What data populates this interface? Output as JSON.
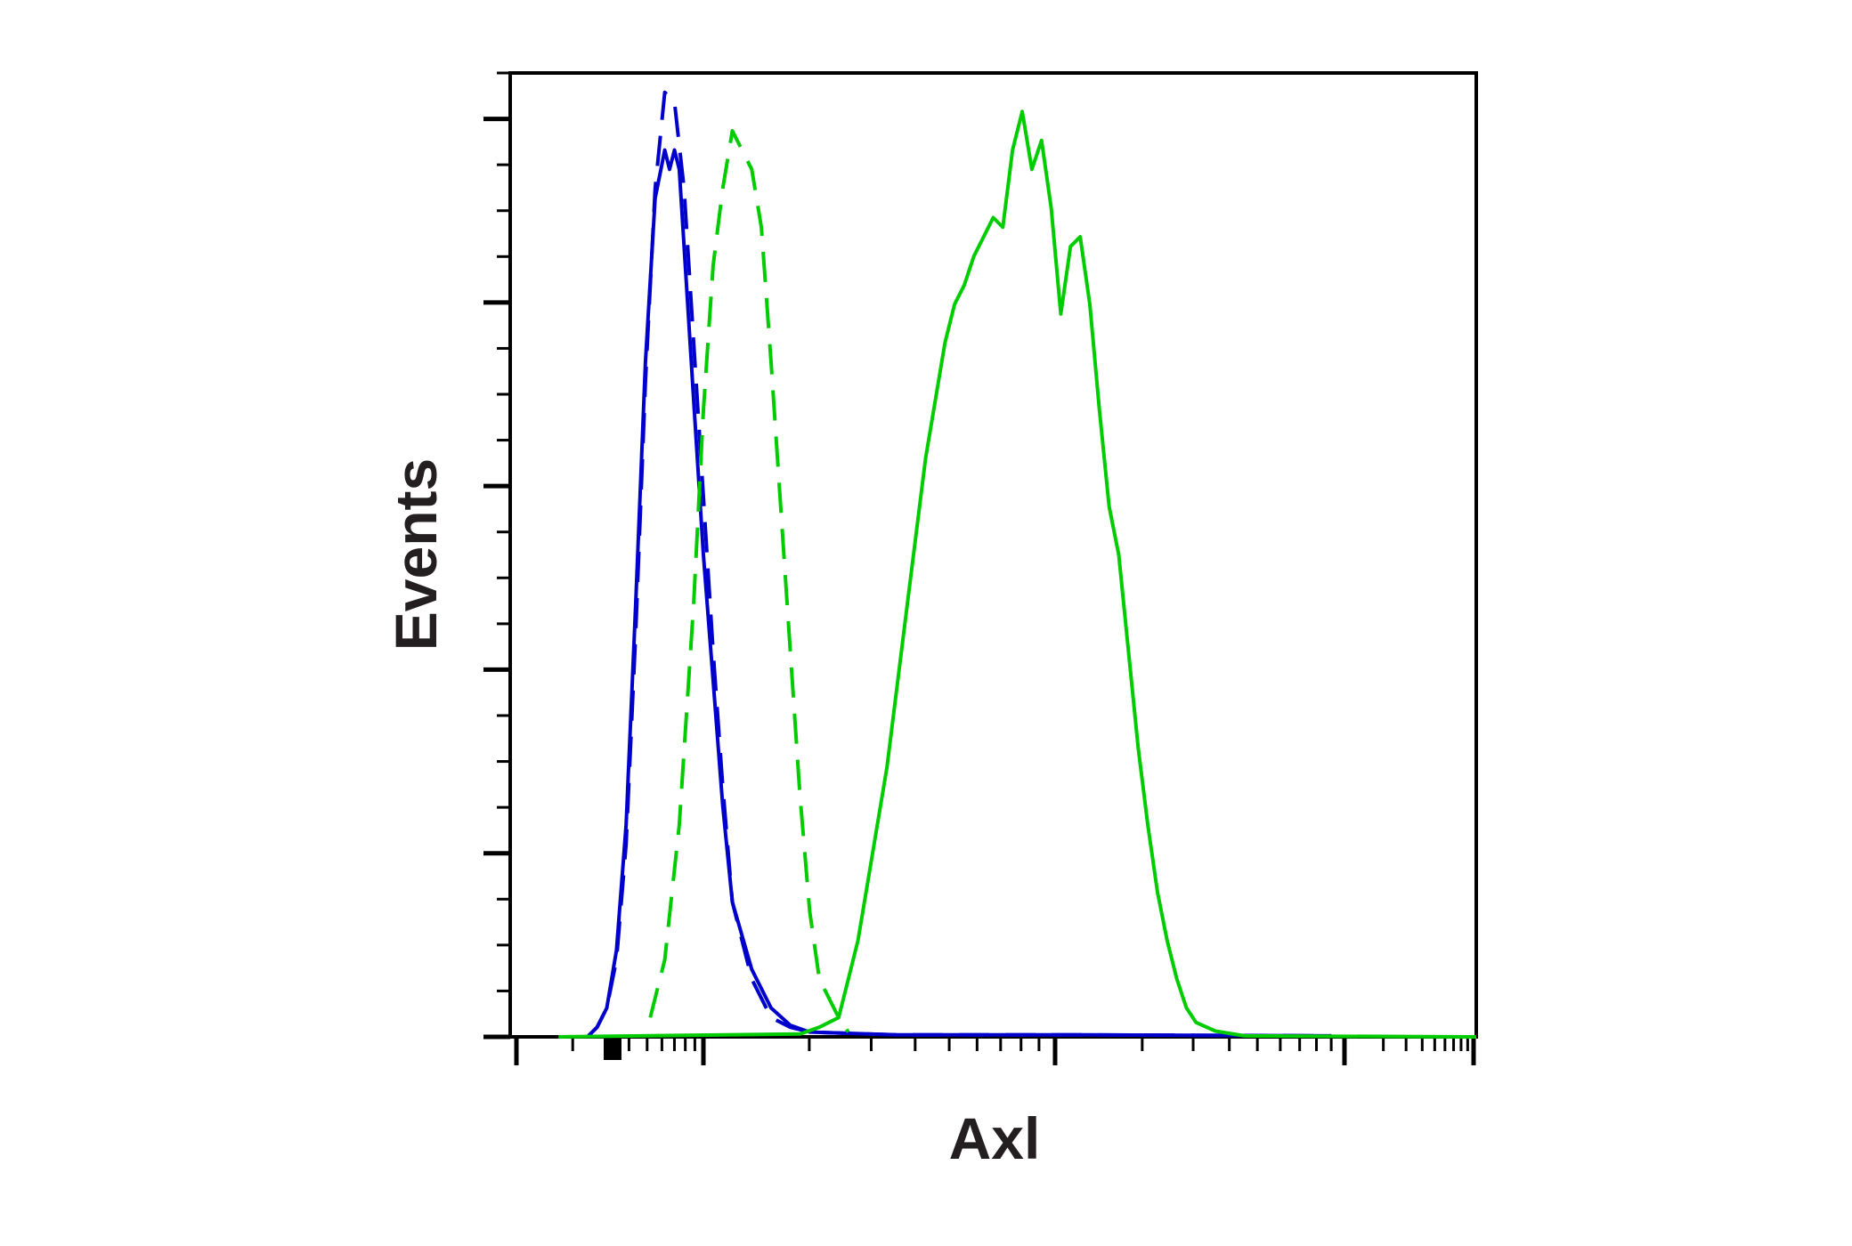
{
  "chart_data": {
    "type": "line",
    "title": "",
    "xlabel": "Axl",
    "ylabel": "Events",
    "x_scale": "log",
    "xlim": [
      0,
      100
    ],
    "ylim": [
      0,
      100
    ],
    "grid": false,
    "tick_labels": false,
    "series": [
      {
        "style": "dashed",
        "color": "#0000cc",
        "points": [
          [
            8,
            0
          ],
          [
            9,
            1
          ],
          [
            10,
            3
          ],
          [
            11,
            8
          ],
          [
            12,
            20
          ],
          [
            13,
            42
          ],
          [
            14,
            68
          ],
          [
            15,
            88
          ],
          [
            16,
            98
          ],
          [
            17,
            97
          ],
          [
            18,
            88
          ],
          [
            19,
            72
          ],
          [
            20,
            56
          ],
          [
            21,
            40
          ],
          [
            22,
            26
          ],
          [
            23,
            14
          ],
          [
            25,
            6
          ],
          [
            27,
            2
          ],
          [
            29,
            1
          ],
          [
            31,
            0.5
          ],
          [
            40,
            0.2
          ],
          [
            60,
            0.2
          ],
          [
            85,
            0.1
          ]
        ]
      },
      {
        "style": "solid",
        "color": "#0000cc",
        "points": [
          [
            8,
            0
          ],
          [
            9,
            1
          ],
          [
            10,
            3
          ],
          [
            11,
            9
          ],
          [
            12,
            22
          ],
          [
            13,
            45
          ],
          [
            14,
            70
          ],
          [
            15,
            87
          ],
          [
            16,
            92
          ],
          [
            16.5,
            90
          ],
          [
            17,
            92
          ],
          [
            17.5,
            90
          ],
          [
            18,
            82
          ],
          [
            19,
            66
          ],
          [
            20,
            50
          ],
          [
            21,
            37
          ],
          [
            22,
            24
          ],
          [
            23,
            14
          ],
          [
            25,
            7
          ],
          [
            27,
            3
          ],
          [
            29,
            1.2
          ],
          [
            31,
            0.5
          ],
          [
            40,
            0.2
          ],
          [
            60,
            0.2
          ],
          [
            85,
            0.1
          ]
        ]
      },
      {
        "style": "dashed",
        "color": "#00cc00",
        "points": [
          [
            14.5,
            2
          ],
          [
            16,
            8
          ],
          [
            17.5,
            22
          ],
          [
            19,
            45
          ],
          [
            20,
            65
          ],
          [
            21,
            80
          ],
          [
            22,
            88
          ],
          [
            23,
            94
          ],
          [
            24,
            92
          ],
          [
            25,
            90
          ],
          [
            26,
            84
          ],
          [
            27,
            70
          ],
          [
            28,
            55
          ],
          [
            29,
            40
          ],
          [
            30,
            25
          ],
          [
            31,
            13
          ],
          [
            32,
            6
          ],
          [
            34,
            2
          ],
          [
            35,
            0.5
          ]
        ]
      },
      {
        "style": "solid",
        "color": "#00cc00",
        "points": [
          [
            5,
            0
          ],
          [
            30,
            0.3
          ],
          [
            32,
            1
          ],
          [
            34,
            2
          ],
          [
            35,
            6
          ],
          [
            36,
            10
          ],
          [
            37,
            16
          ],
          [
            39,
            28
          ],
          [
            41,
            44
          ],
          [
            43,
            60
          ],
          [
            45,
            72
          ],
          [
            46,
            76
          ],
          [
            47,
            78
          ],
          [
            48,
            81
          ],
          [
            49,
            83
          ],
          [
            50,
            85
          ],
          [
            51,
            84
          ],
          [
            52,
            92
          ],
          [
            53,
            96
          ],
          [
            54,
            90
          ],
          [
            55,
            93
          ],
          [
            56,
            86
          ],
          [
            57,
            75
          ],
          [
            58,
            82
          ],
          [
            59,
            83
          ],
          [
            60,
            76
          ],
          [
            61,
            65
          ],
          [
            62,
            55
          ],
          [
            63,
            50
          ],
          [
            64,
            40
          ],
          [
            65,
            30
          ],
          [
            66,
            22
          ],
          [
            67,
            15
          ],
          [
            68,
            10
          ],
          [
            69,
            6
          ],
          [
            70,
            3
          ],
          [
            71,
            1.5
          ],
          [
            73,
            0.6
          ],
          [
            76,
            0.1
          ],
          [
            100,
            0
          ]
        ]
      }
    ]
  }
}
